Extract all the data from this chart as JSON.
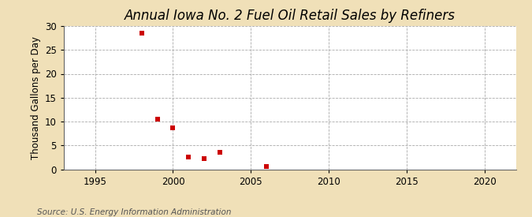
{
  "title": "Annual Iowa No. 2 Fuel Oil Retail Sales by Refiners",
  "ylabel": "Thousand Gallons per Day",
  "source": "Source: U.S. Energy Information Administration",
  "background_color": "#f0e0b8",
  "plot_background_color": "#ffffff",
  "x_data": [
    1998,
    1999,
    2000,
    2001,
    2002,
    2003,
    2006
  ],
  "y_data": [
    28.5,
    10.5,
    8.7,
    2.5,
    2.3,
    3.6,
    0.6
  ],
  "marker_color": "#cc0000",
  "marker": "s",
  "marker_size": 4,
  "xlim": [
    1993,
    2022
  ],
  "ylim": [
    0,
    30
  ],
  "xticks": [
    1995,
    2000,
    2005,
    2010,
    2015,
    2020
  ],
  "yticks": [
    0,
    5,
    10,
    15,
    20,
    25,
    30
  ],
  "title_fontsize": 12,
  "label_fontsize": 8.5,
  "tick_fontsize": 8.5,
  "source_fontsize": 7.5,
  "grid_color": "#aaaaaa",
  "grid_style": "--"
}
